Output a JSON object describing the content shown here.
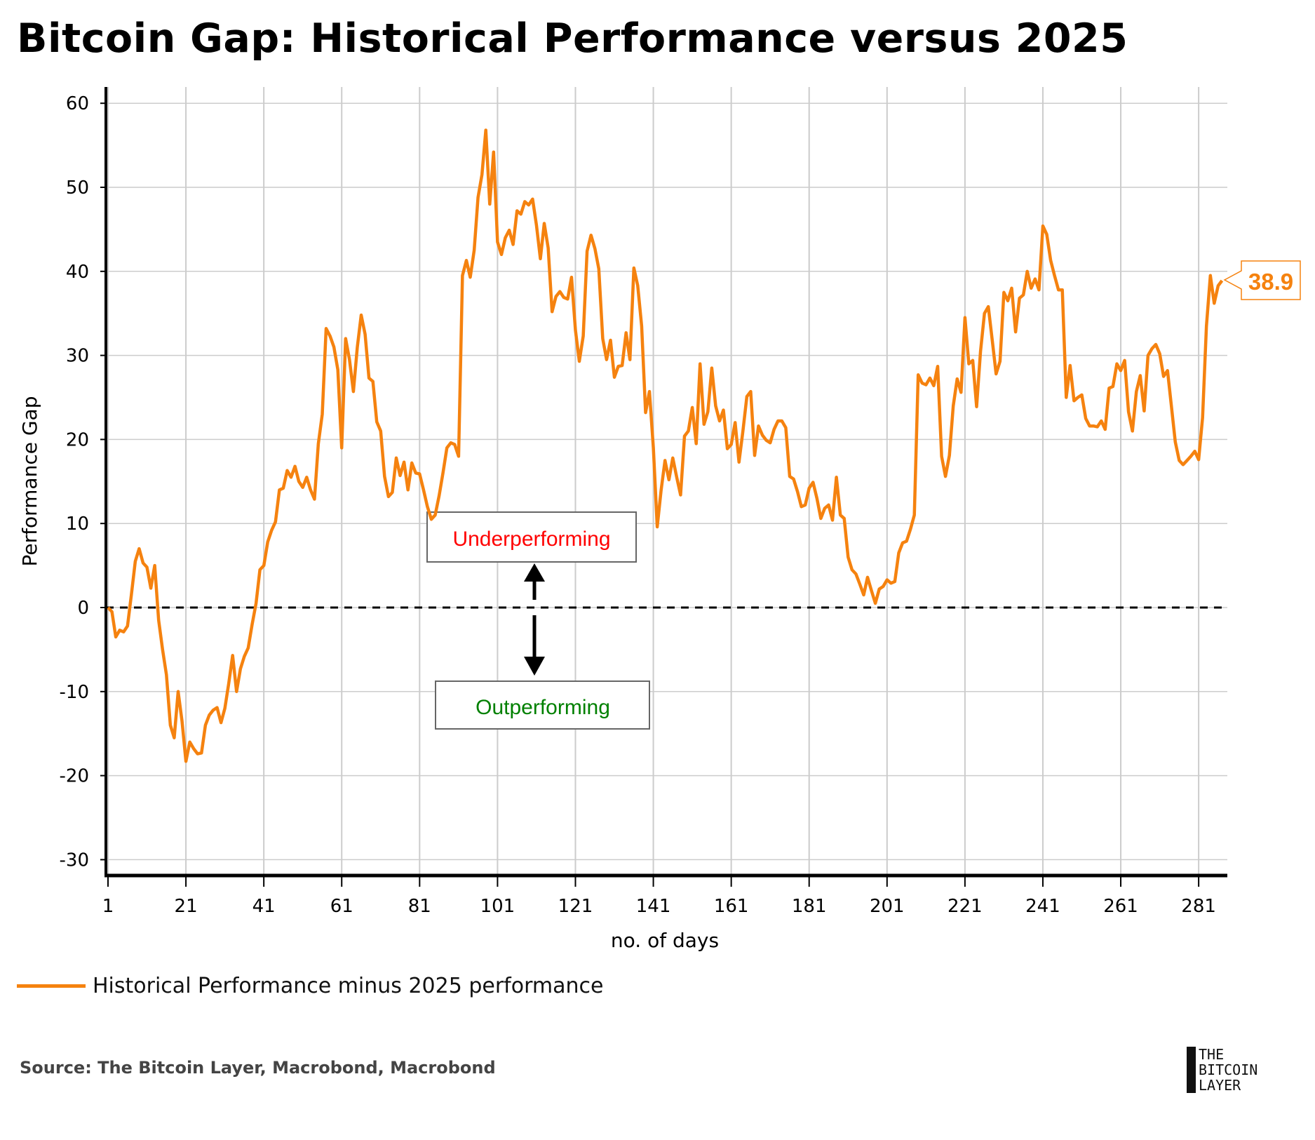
{
  "title": "Bitcoin Gap: Historical Performance versus 2025",
  "colors": {
    "series": "#f5820f",
    "grid": "#cccccc",
    "under": "#ff0000",
    "out": "#008000"
  },
  "chart_data": {
    "type": "line",
    "title": "Bitcoin Gap: Historical Performance versus 2025",
    "xlabel": "no. of days",
    "ylabel": "Performance Gap",
    "ylim": [
      -32,
      62
    ],
    "xlim": [
      0.5,
      289
    ],
    "grid": true,
    "legend_position": "bottom-left",
    "yticks": [
      60,
      50,
      40,
      30,
      20,
      10,
      0,
      -10,
      -20,
      -30
    ],
    "ytick_labels": [
      "60",
      "50",
      "40",
      "30",
      "20",
      "10",
      "0",
      "-10",
      "-20",
      "-30"
    ],
    "xticks": [
      1,
      21,
      41,
      61,
      81,
      101,
      121,
      141,
      161,
      181,
      201,
      221,
      241,
      261,
      281
    ],
    "xtick_labels": [
      "1",
      "21",
      "41",
      "61",
      "81",
      "101",
      "121",
      "141",
      "161",
      "181",
      "201",
      "221",
      "241",
      "261",
      "281"
    ],
    "series": [
      {
        "name": "Historical Performance minus 2025 performance",
        "x_start": 1,
        "values": [
          0,
          -0.5,
          -3.5,
          -2.7,
          -2.9,
          -2.2,
          1.5,
          5.5,
          7,
          5.3,
          4.8,
          2.3,
          5,
          -1.5,
          -5,
          -8,
          -14,
          -15.5,
          -10,
          -13.5,
          -18.3,
          -16,
          -16.8,
          -17.4,
          -17.3,
          -14,
          -12.8,
          -12.2,
          -11.9,
          -13.7,
          -12,
          -9,
          -5.7,
          -10,
          -7.3,
          -5.8,
          -4.8,
          -2,
          0.5,
          4.5,
          5,
          7.8,
          9.2,
          10.2,
          14,
          14.2,
          16.3,
          15.5,
          16.8,
          15,
          14.3,
          15.5,
          14,
          12.9,
          19.5,
          23,
          33.2,
          32.3,
          31,
          28.3,
          19,
          32,
          29.5,
          25.7,
          31,
          34.8,
          32.5,
          27.3,
          26.9,
          22.1,
          21,
          15.6,
          13.2,
          13.7,
          17.8,
          15.7,
          17.3,
          14,
          17.2,
          16,
          15.9,
          14,
          12,
          10.5,
          11,
          13.3,
          16,
          19,
          19.6,
          19.4,
          18,
          39.5,
          41.3,
          39.3,
          42.5,
          48.8,
          51.5,
          56.8,
          48,
          54.2,
          43.5,
          42,
          44,
          44.9,
          43.2,
          47.2,
          46.8,
          48.3,
          47.9,
          48.6,
          45.5,
          41.5,
          45.7,
          42.8,
          35.2,
          37,
          37.6,
          36.9,
          36.7,
          39.3,
          33,
          29.3,
          32.3,
          42.4,
          44.3,
          42.7,
          40.3,
          32,
          29.5,
          31.8,
          27.4,
          28.7,
          28.8,
          32.7,
          29.5,
          40.4,
          38.3,
          33.5,
          23.2,
          25.7,
          19,
          9.6,
          14,
          17.5,
          15.2,
          17.8,
          15.5,
          13.4,
          20.4,
          21,
          23.8,
          19.5,
          29,
          21.8,
          23.3,
          28.5,
          24,
          22.2,
          23.5,
          18.9,
          19.4,
          22,
          17.3,
          21,
          25.1,
          25.7,
          18.1,
          21.6,
          20.5,
          19.9,
          19.6,
          21.2,
          22.2,
          22.2,
          21.4,
          15.6,
          15.3,
          13.8,
          12,
          12.2,
          14.2,
          14.9,
          13,
          10.6,
          11.8,
          12.2,
          10.4,
          15.5,
          11,
          10.6,
          6,
          4.5,
          4,
          2.8,
          1.5,
          3.6,
          2,
          0.5,
          2.2,
          2.5,
          3.3,
          2.9,
          3.1,
          6.5,
          7.7,
          7.9,
          9.3,
          11,
          27.7,
          26.7,
          26.5,
          27.3,
          26.4,
          28.7,
          18,
          15.6,
          18.1,
          24,
          27.2,
          25.6,
          34.5,
          29,
          29.4,
          23.9,
          30.5,
          35,
          35.8,
          31.8,
          27.8,
          29.3,
          37.5,
          36.5,
          38,
          32.8,
          36.8,
          37.2,
          40,
          38,
          39.1,
          37.8,
          45.4,
          44.4,
          41.3,
          39.5,
          37.8,
          37.8,
          25,
          28.8,
          24.6,
          25,
          25.3,
          22.5,
          21.6,
          21.6,
          21.5,
          22.2,
          21.2,
          26.1,
          26.3,
          29,
          28.2,
          29.4,
          23.3,
          21,
          25.7,
          27.6,
          23.4,
          30,
          30.8,
          31.3,
          30.2,
          27.5,
          28.2,
          24,
          19.7,
          17.5,
          17,
          17.5,
          18,
          18.6,
          17.6,
          22.6,
          33.5,
          39.5,
          36.2,
          38.3,
          38.9
        ]
      }
    ],
    "last_value_label": "38.9",
    "annotations": {
      "above": "Underperforming",
      "below": "Outperforming"
    }
  },
  "legend": {
    "label": "Historical Performance minus 2025 performance"
  },
  "source": "Source: The Bitcoin Layer, Macrobond, Macrobond",
  "logo": {
    "line1": "THE",
    "line2": "BITCOIN",
    "line3": "LAYER"
  }
}
